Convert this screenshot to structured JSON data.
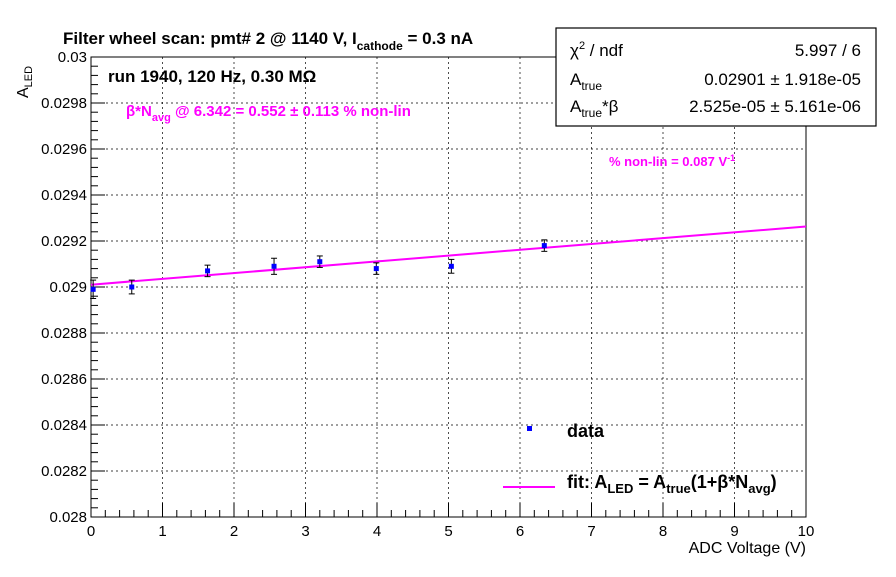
{
  "title": {
    "main": "Filter wheel scan: pmt#   2 @  1140 V, I",
    "sub": "cathode",
    "tail": " = 0.3 nA"
  },
  "run_info": "run 1940, 120 Hz, 0.30 MΩ",
  "annotation_beta": {
    "p1": "β*N",
    "sub": "avg",
    "p2": " @ 6.342 = 0.552 ± 0.113 % non-lin"
  },
  "annotation_nonlin": {
    "text": "% non-lin = 0.087 V",
    "sup": "-1"
  },
  "stats": {
    "chi2_label": "χ",
    "chi2_sup": "2",
    "chi2_rest": " / ndf",
    "chi2_value": "5.997 / 6",
    "atrue_label": "A",
    "atrue_sub": "true",
    "atrue_value": "0.02901 ± 1.918e-05",
    "atb_label": "A",
    "atb_sub": "true",
    "atb_rest": "*β",
    "atb_value": "2.525e-05 ± 5.161e-06"
  },
  "legend": {
    "data_label": "data",
    "fit_p1": "fit: A",
    "fit_s1": "LED",
    "fit_p2": " = A",
    "fit_s2": "true",
    "fit_p3": "(1+β*N",
    "fit_s3": "avg",
    "fit_p4": ")"
  },
  "colors": {
    "data": "#0000ff",
    "fit": "#ff00ff",
    "annotation": "#ff00ff"
  },
  "chart_data": {
    "type": "scatter",
    "xlabel": "ADC Voltage (V)",
    "ylabel": "A",
    "ylabel_sub": "LED",
    "xlim": [
      0,
      10
    ],
    "ylim": [
      0.028,
      0.03
    ],
    "grid": true,
    "legend_position": "bottom-right",
    "x_ticks": [
      0,
      1,
      2,
      3,
      4,
      5,
      6,
      7,
      8,
      9,
      10
    ],
    "x_tick_labels": [
      "0",
      "1",
      "2",
      "3",
      "4",
      "5",
      "6",
      "7",
      "8",
      "9",
      "10"
    ],
    "y_ticks": [
      0.028,
      0.0282,
      0.0284,
      0.0286,
      0.0288,
      0.029,
      0.0292,
      0.0294,
      0.0296,
      0.0298,
      0.03
    ],
    "y_tick_labels": [
      "0.028",
      "0.0282",
      "0.0284",
      "0.0286",
      "0.0288",
      "0.029",
      "0.0292",
      "0.0294",
      "0.0296",
      "0.0298",
      "0.03"
    ],
    "series": [
      {
        "name": "data",
        "type": "scatter",
        "x": [
          0.03,
          0.57,
          1.63,
          2.56,
          3.2,
          3.99,
          5.04,
          6.34
        ],
        "y": [
          0.02899,
          0.029,
          0.02907,
          0.02909,
          0.02911,
          0.02908,
          0.02909,
          0.02918
        ],
        "yerr": [
          4e-05,
          3e-05,
          2.5e-05,
          3.5e-05,
          2.5e-05,
          2.5e-05,
          3e-05,
          2.5e-05
        ]
      },
      {
        "name": "fit",
        "type": "line",
        "x": [
          0,
          10
        ],
        "y": [
          0.02901,
          0.029263
        ]
      }
    ]
  }
}
